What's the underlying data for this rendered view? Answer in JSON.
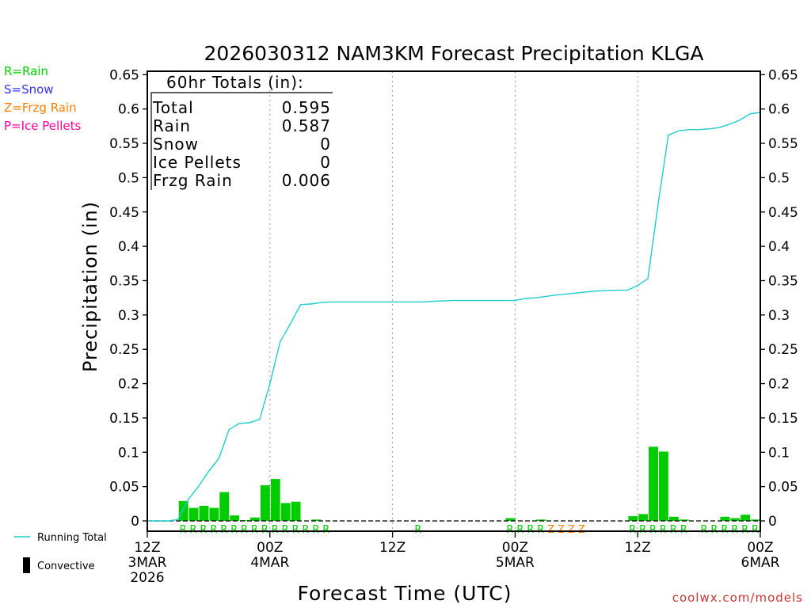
{
  "chart_data": {
    "type": "bar",
    "title": "2026030312 NAM3KM Forecast Precipitation KLGA",
    "xlabel": "Forecast Time (UTC)",
    "ylabel": "Precipitation (in)",
    "ylim": [
      -0.015,
      0.655
    ],
    "y_ticks": [
      0,
      0.05,
      0.1,
      0.15,
      0.2,
      0.25,
      0.3,
      0.35,
      0.4,
      0.45,
      0.5,
      0.55,
      0.6,
      0.65
    ],
    "y_tick_labels": [
      "0",
      "0.05",
      "0.1",
      "0.15",
      "0.2",
      "0.25",
      "0.3",
      "0.35",
      "0.4",
      "0.45",
      "0.5",
      "0.55",
      "0.6",
      "0.65"
    ],
    "x_unit": "forecast hour",
    "xlim": [
      0,
      60
    ],
    "x_ticks": [
      {
        "hour": 0,
        "lines": [
          "12Z",
          "3MAR",
          "2026"
        ]
      },
      {
        "hour": 12,
        "lines": [
          "00Z",
          "4MAR"
        ]
      },
      {
        "hour": 24,
        "lines": [
          "12Z"
        ]
      },
      {
        "hour": 36,
        "lines": [
          "00Z",
          "5MAR"
        ]
      },
      {
        "hour": 48,
        "lines": [
          "12Z"
        ]
      },
      {
        "hour": 60,
        "lines": [
          "00Z",
          "6MAR"
        ]
      }
    ],
    "grid": "vertical dotted at 00Z/12Z",
    "legend": {
      "top_left": [
        {
          "label": "R=Rain",
          "color": "#00cc00"
        },
        {
          "label": "S=Snow",
          "color": "#3333ff"
        },
        {
          "label": "Z=Frzg Rain",
          "color": "#ff8000"
        },
        {
          "label": "P=Ice Pellets",
          "color": "#ff0099"
        }
      ],
      "bottom_left": [
        {
          "label": "Running Total",
          "symbol": "line",
          "color": "#22cccc"
        },
        {
          "label": "Convective",
          "symbol": "bar",
          "color": "#000000"
        }
      ]
    },
    "totals_box": {
      "heading": "60hr Totals (in):",
      "rows": [
        {
          "label": "Total",
          "value": "0.595"
        },
        {
          "label": "Rain",
          "value": "0.587"
        },
        {
          "label": "Snow",
          "value": "0"
        },
        {
          "label": "Ice Pellets",
          "value": "0"
        },
        {
          "label": "Frzg Rain",
          "value": "0.006"
        }
      ]
    },
    "series": [
      {
        "type": "bar",
        "color": "#00cc00",
        "points": [
          {
            "hour": 4,
            "value": 0.029
          },
          {
            "hour": 5,
            "value": 0.019
          },
          {
            "hour": 6,
            "value": 0.022
          },
          {
            "hour": 7,
            "value": 0.019
          },
          {
            "hour": 8,
            "value": 0.042
          },
          {
            "hour": 9,
            "value": 0.008
          },
          {
            "hour": 10,
            "value": 0.001
          },
          {
            "hour": 11,
            "value": 0.005
          },
          {
            "hour": 12,
            "value": 0.052
          },
          {
            "hour": 13,
            "value": 0.061
          },
          {
            "hour": 14,
            "value": 0.026
          },
          {
            "hour": 15,
            "value": 0.028
          },
          {
            "hour": 17,
            "value": 0.002
          },
          {
            "hour": 36,
            "value": 0.004
          },
          {
            "hour": 39,
            "value": 0.002
          },
          {
            "hour": 48,
            "value": 0.007
          },
          {
            "hour": 49,
            "value": 0.01
          },
          {
            "hour": 50,
            "value": 0.108
          },
          {
            "hour": 51,
            "value": 0.101
          },
          {
            "hour": 52,
            "value": 0.006
          },
          {
            "hour": 53,
            "value": 0.002
          },
          {
            "hour": 57,
            "value": 0.006
          },
          {
            "hour": 58,
            "value": 0.004
          },
          {
            "hour": 59,
            "value": 0.009
          },
          {
            "hour": 60,
            "value": 0.002
          }
        ]
      },
      {
        "name": "Running Total",
        "type": "line",
        "color": "#22cccc",
        "x": [
          0,
          1,
          2,
          3,
          4,
          5,
          6,
          7,
          8,
          9,
          10,
          11,
          12,
          13,
          14,
          15,
          16,
          17,
          18,
          20,
          22,
          24,
          26,
          27,
          28,
          30,
          32,
          34,
          36,
          37,
          38,
          40,
          42,
          44,
          46,
          47,
          48,
          49,
          50,
          51,
          52,
          53,
          54,
          55,
          56,
          57,
          58,
          59,
          60
        ],
        "y": [
          0,
          0,
          0,
          0.002,
          0.031,
          0.05,
          0.072,
          0.091,
          0.133,
          0.142,
          0.143,
          0.148,
          0.2,
          0.261,
          0.287,
          0.315,
          0.316,
          0.318,
          0.319,
          0.319,
          0.319,
          0.319,
          0.319,
          0.319,
          0.32,
          0.321,
          0.321,
          0.321,
          0.321,
          0.324,
          0.325,
          0.329,
          0.332,
          0.335,
          0.336,
          0.336,
          0.343,
          0.353,
          0.462,
          0.562,
          0.568,
          0.57,
          0.57,
          0.571,
          0.573,
          0.578,
          0.584,
          0.593,
          0.595
        ]
      }
    ],
    "ptype_marks": [
      {
        "hour": 4,
        "letter": "R"
      },
      {
        "hour": 5,
        "letter": "R"
      },
      {
        "hour": 6,
        "letter": "R"
      },
      {
        "hour": 7,
        "letter": "R"
      },
      {
        "hour": 8,
        "letter": "R"
      },
      {
        "hour": 9,
        "letter": "R"
      },
      {
        "hour": 10,
        "letter": "R"
      },
      {
        "hour": 11,
        "letter": "R"
      },
      {
        "hour": 12,
        "letter": "R"
      },
      {
        "hour": 13,
        "letter": "R"
      },
      {
        "hour": 14,
        "letter": "R"
      },
      {
        "hour": 15,
        "letter": "R"
      },
      {
        "hour": 16,
        "letter": "R"
      },
      {
        "hour": 17,
        "letter": "R"
      },
      {
        "hour": 18,
        "letter": "R"
      },
      {
        "hour": 27,
        "letter": "R"
      },
      {
        "hour": 36,
        "letter": "R"
      },
      {
        "hour": 37,
        "letter": "R"
      },
      {
        "hour": 38,
        "letter": "R"
      },
      {
        "hour": 39,
        "letter": "R"
      },
      {
        "hour": 40,
        "letter": "Z"
      },
      {
        "hour": 41,
        "letter": "Z"
      },
      {
        "hour": 42,
        "letter": "Z"
      },
      {
        "hour": 43,
        "letter": "Z"
      },
      {
        "hour": 48,
        "letter": "R"
      },
      {
        "hour": 49,
        "letter": "R"
      },
      {
        "hour": 50,
        "letter": "R"
      },
      {
        "hour": 51,
        "letter": "R"
      },
      {
        "hour": 52,
        "letter": "R"
      },
      {
        "hour": 53,
        "letter": "R"
      },
      {
        "hour": 55,
        "letter": "R"
      },
      {
        "hour": 56,
        "letter": "R"
      },
      {
        "hour": 57,
        "letter": "R"
      },
      {
        "hour": 58,
        "letter": "R"
      },
      {
        "hour": 59,
        "letter": "R"
      },
      {
        "hour": 60,
        "letter": "R"
      }
    ],
    "ptype_colors": {
      "R": "#00cc00",
      "S": "#3333ff",
      "Z": "#ff8000",
      "P": "#ff0099"
    }
  },
  "footer": {
    "credit": "coolwx.com/models"
  }
}
